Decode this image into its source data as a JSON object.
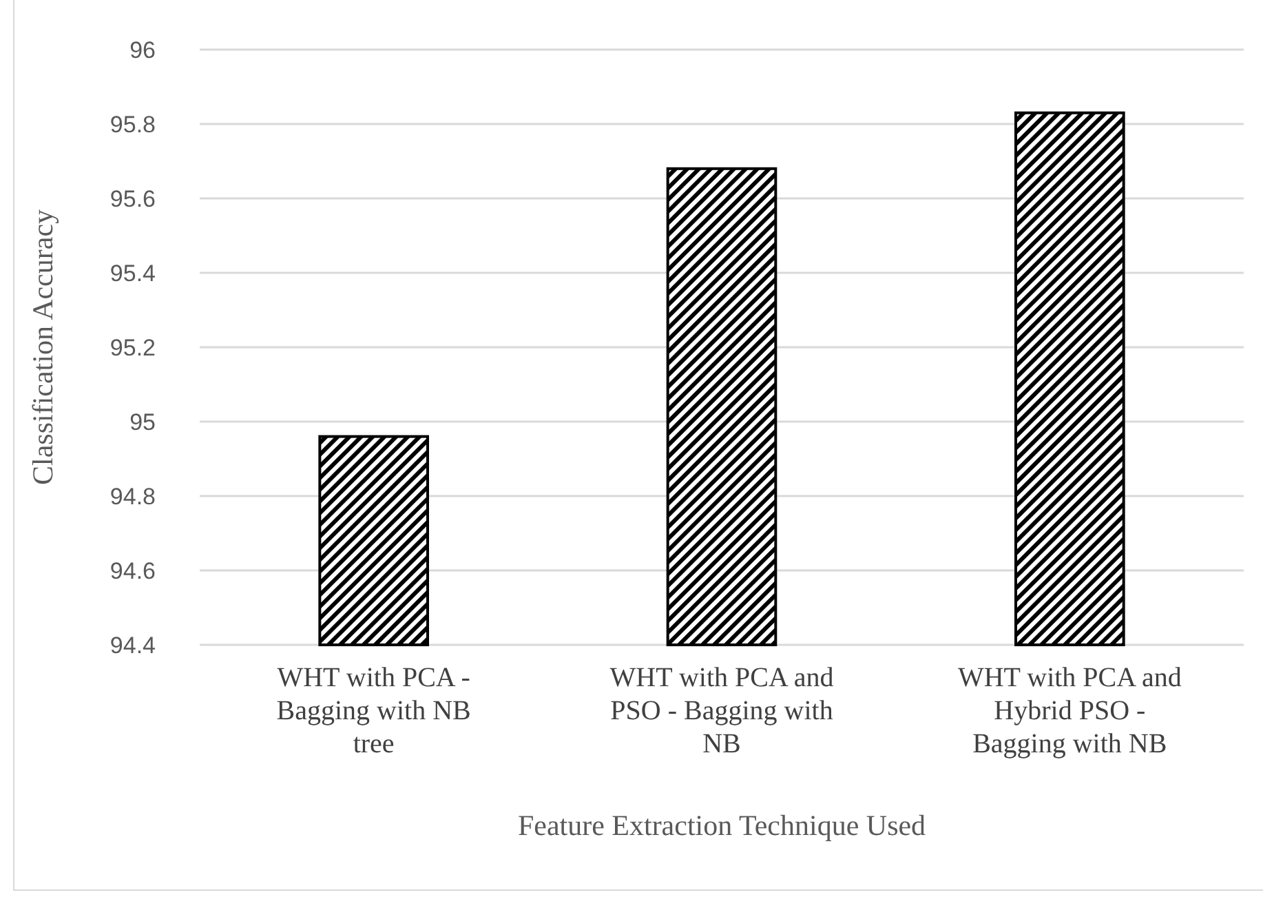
{
  "chart_data": {
    "type": "bar",
    "xlabel": "Feature Extraction Technique Used",
    "ylabel": "Classification Accuracy",
    "categories": [
      "WHT with PCA - Bagging with NB tree",
      "WHT with PCA and PSO - Bagging with NB",
      "WHT with PCA and Hybrid PSO - Bagging with NB"
    ],
    "values": [
      94.96,
      95.68,
      95.83
    ],
    "color": "#000000",
    "ylim": [
      94.4,
      96
    ],
    "yticks": [
      94.4,
      94.6,
      94.8,
      95,
      95.2,
      95.4,
      95.6,
      95.8,
      96
    ],
    "grid": "y"
  }
}
